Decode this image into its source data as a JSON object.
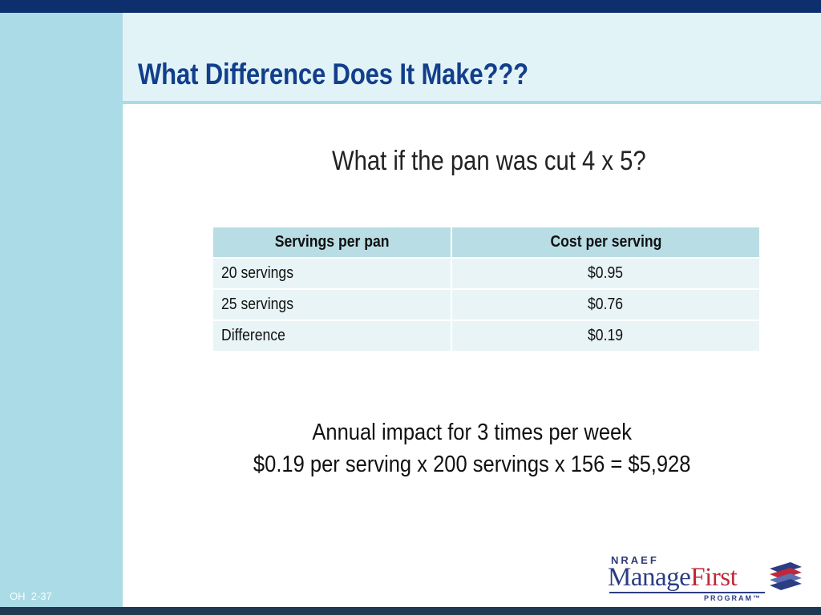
{
  "slide": {
    "title": "What Difference Does It Make???",
    "subtitle": "What if the pan was cut 4 x 5?",
    "slide_ref": "OH  2-37"
  },
  "table": {
    "headers": [
      "Servings per pan",
      "Cost per serving"
    ],
    "rows": [
      [
        "20 servings",
        "$0.95"
      ],
      [
        "25 servings",
        "$0.76"
      ],
      [
        "Difference",
        "$0.19"
      ]
    ]
  },
  "impact": {
    "line1": "Annual impact for 3 times per week",
    "line2": "$0.19 per serving x 200 servings x 156 = $5,928"
  },
  "logo": {
    "org": "NRAEF",
    "name_part1": "Manage",
    "name_part2": "First",
    "program": "PROGRAM™"
  },
  "colors": {
    "navy_bar": "#0d2f6e",
    "side_panel": "#aadbe6",
    "title_text": "#123f8c",
    "table_header": "#b9dde4",
    "table_cell": "#e9f4f6"
  }
}
